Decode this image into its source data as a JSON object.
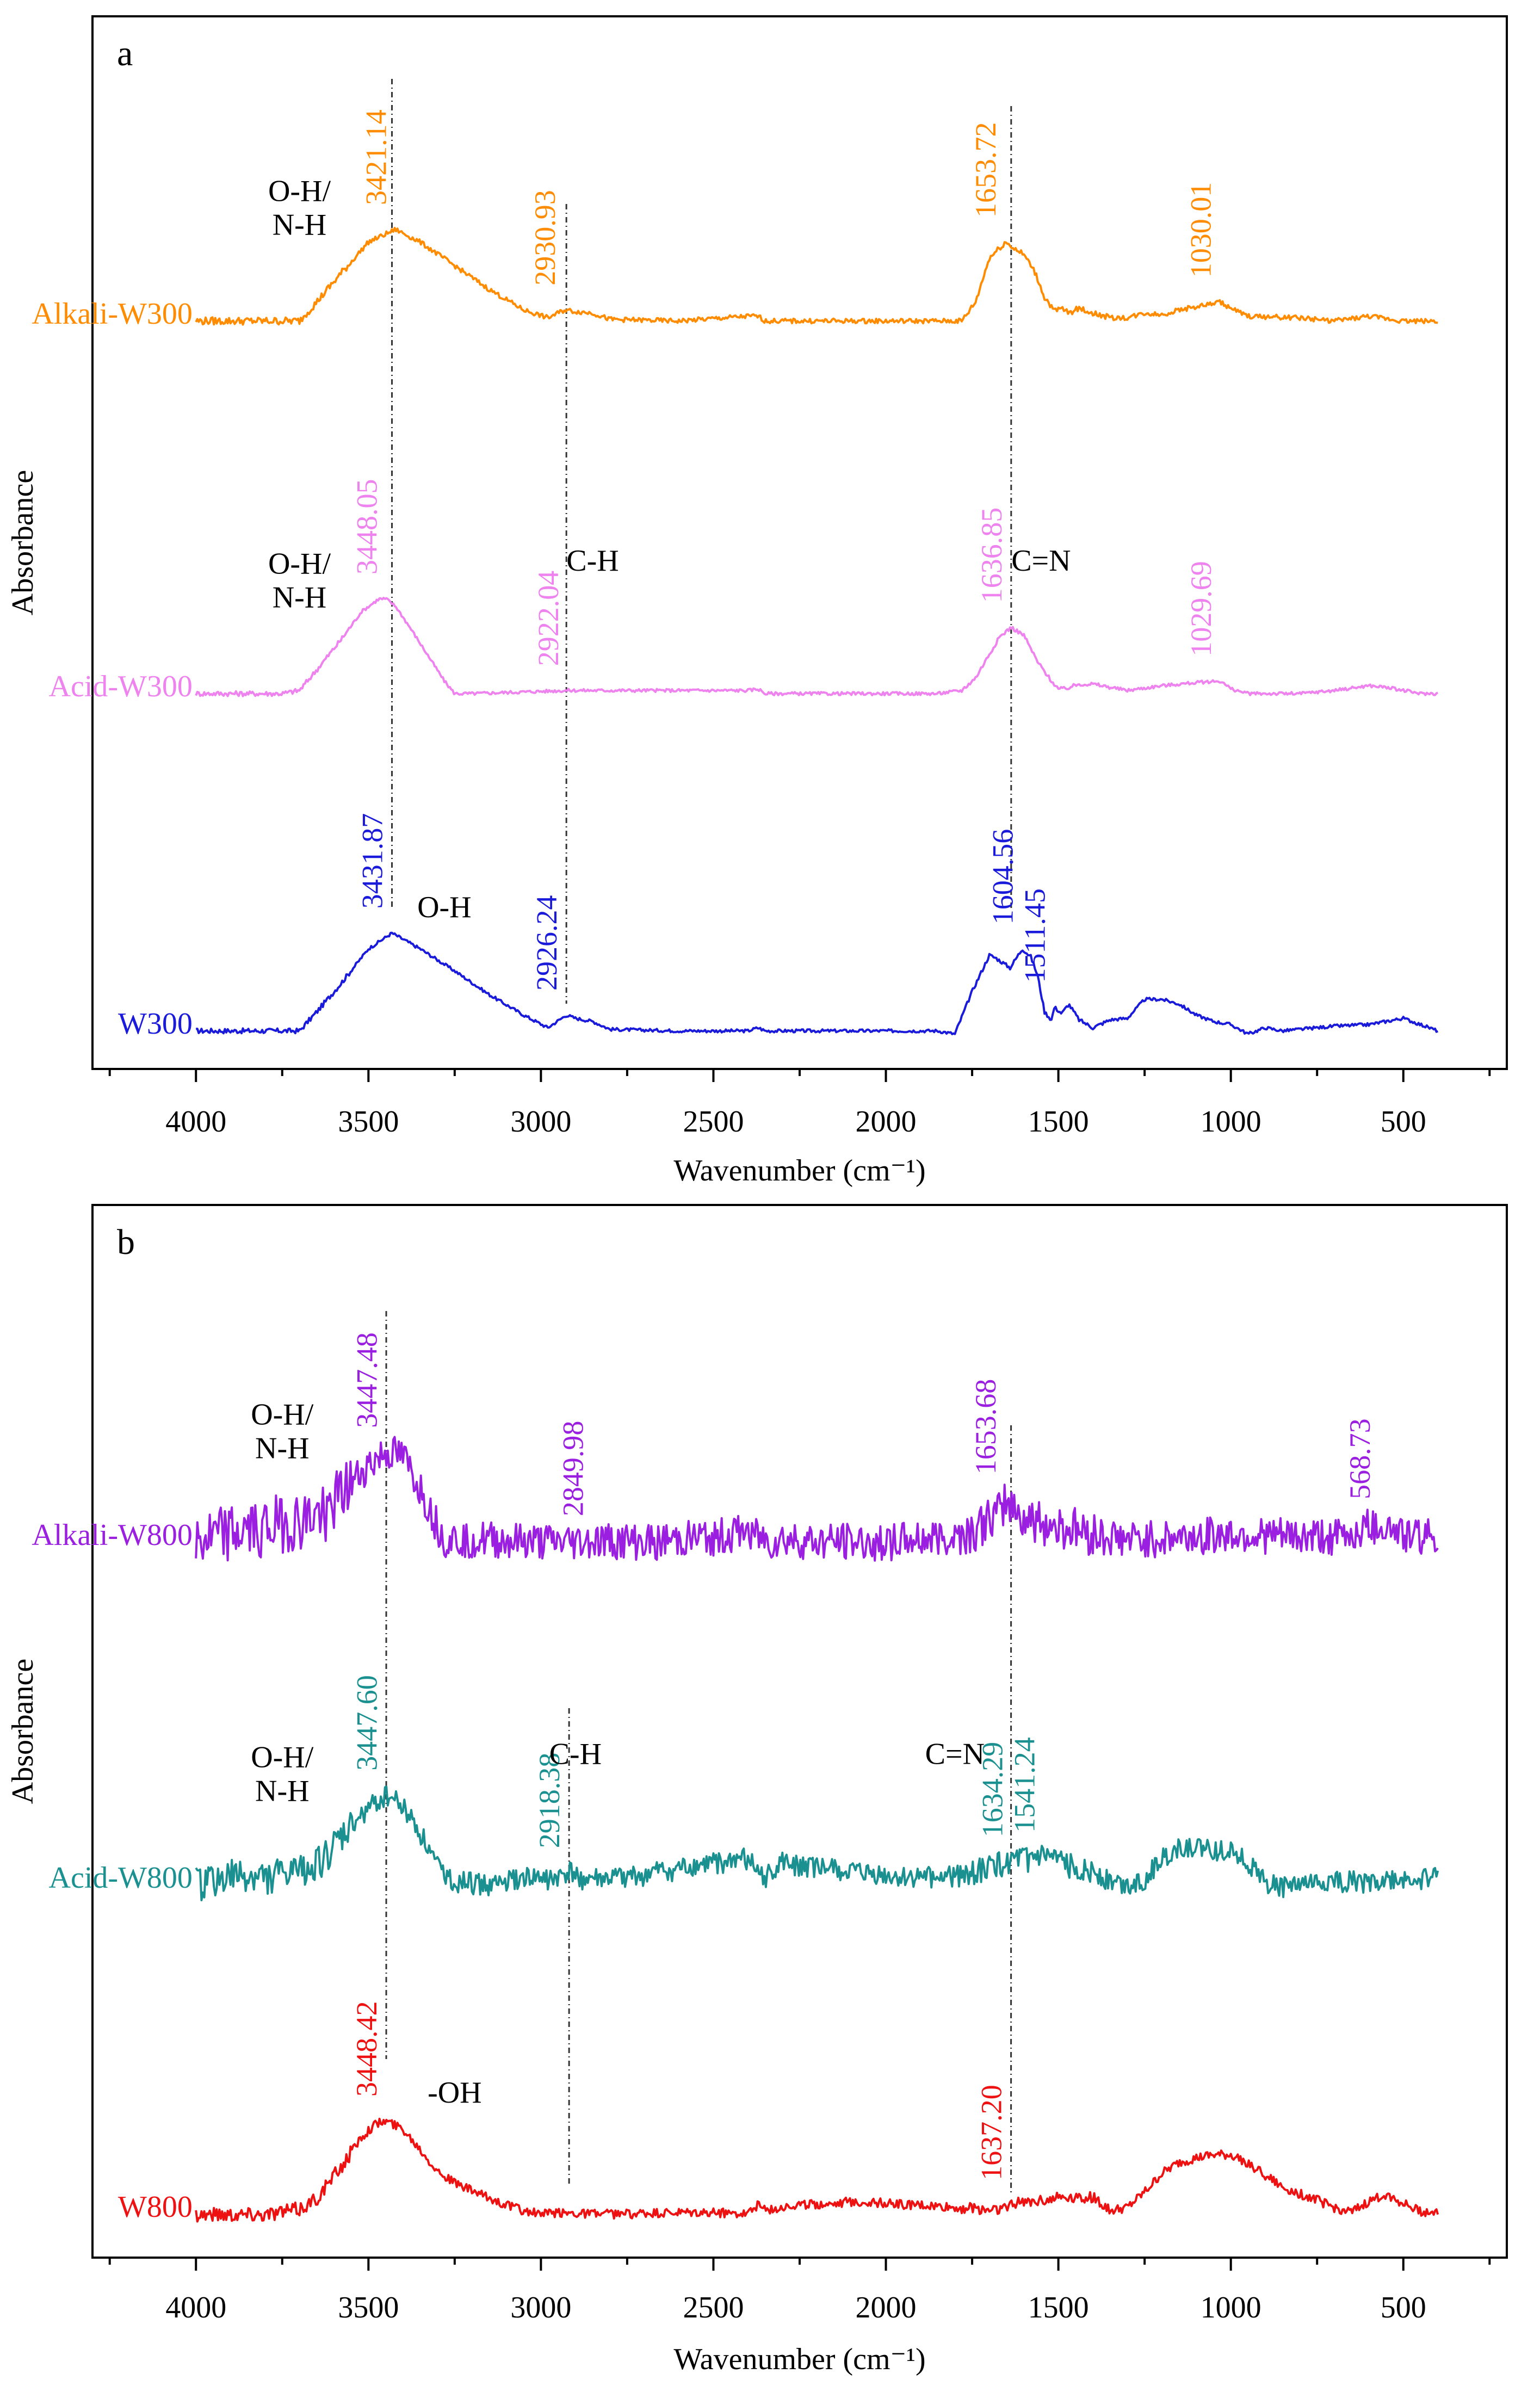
{
  "chart_data": [
    {
      "panel": "a",
      "type": "line",
      "xlabel": "Wavenumber (cm⁻¹)",
      "ylabel": "Absorbance",
      "xlim": [
        4300,
        200
      ],
      "xticks": [
        4000,
        3500,
        3000,
        2500,
        2000,
        1500,
        1000,
        500
      ],
      "reference_lines": [
        3431.87,
        2926.24,
        1636.85
      ],
      "series": [
        {
          "name": "W300",
          "color": "#1a1adb",
          "offset": 2.0,
          "noise": 0.01,
          "x": [
            4000,
            3700,
            3650,
            3580,
            3500,
            3431.87,
            3350,
            3250,
            3150,
            3050,
            2980,
            2926.24,
            2900,
            2850,
            2800,
            2600,
            2400,
            2370,
            2350,
            2200,
            2000,
            1850,
            1800,
            1750,
            1700,
            1680,
            1640,
            1604.56,
            1580,
            1560,
            1540,
            1520,
            1511.45,
            1490,
            1470,
            1440,
            1400,
            1350,
            1300,
            1250,
            1200,
            1150,
            1100,
            1050,
            1000,
            950,
            900,
            850,
            800,
            700,
            600,
            500,
            450,
            400
          ],
          "y": [
            0,
            0,
            0.12,
            0.3,
            0.52,
            0.62,
            0.52,
            0.38,
            0.23,
            0.1,
            0.02,
            0.1,
            0.08,
            0.06,
            0.01,
            0,
            0,
            0.02,
            0,
            0,
            0,
            0,
            -0.02,
            0.25,
            0.48,
            0.46,
            0.4,
            0.52,
            0.47,
            0.35,
            0.12,
            0.07,
            0.15,
            0.11,
            0.17,
            0.07,
            0.02,
            0.07,
            0.08,
            0.2,
            0.2,
            0.17,
            0.1,
            0.06,
            0.04,
            -0.02,
            0.02,
            0.0,
            0.01,
            0.03,
            0.04,
            0.08,
            0.04,
            0.0
          ]
        },
        {
          "name": "Acid-W300",
          "color": "#ee82ee",
          "offset": 1.0,
          "noise": 0.01,
          "x": [
            4000,
            3750,
            3700,
            3650,
            3580,
            3520,
            3470,
            3448.05,
            3420,
            3380,
            3330,
            3280,
            3250,
            3200,
            2922.04,
            2600,
            2400,
            2370,
            2350,
            2200,
            2000,
            1850,
            1780,
            1740,
            1700,
            1670,
            1636.85,
            1600,
            1560,
            1520,
            1500,
            1480,
            1440,
            1400,
            1350,
            1300,
            1200,
            1100,
            1029.69,
            1000,
            950,
            800,
            700,
            600,
            550,
            500,
            450,
            400
          ],
          "y": [
            0,
            0,
            0.02,
            0.15,
            0.34,
            0.52,
            0.6,
            0.6,
            0.55,
            0.42,
            0.25,
            0.08,
            0.0,
            0.0,
            0.02,
            0.02,
            0.02,
            0.03,
            0.0,
            0.0,
            0.0,
            0.0,
            0.02,
            0.1,
            0.25,
            0.36,
            0.42,
            0.37,
            0.2,
            0.08,
            0.03,
            0.03,
            0.06,
            0.06,
            0.04,
            0.02,
            0.05,
            0.07,
            0.08,
            0.03,
            0.0,
            0.0,
            0.02,
            0.05,
            0.04,
            0.02,
            0.0,
            0.0
          ]
        },
        {
          "name": "Alkali-W300",
          "color": "#ff8c00",
          "offset": 0.0,
          "noise": 0.015,
          "x": [
            4000,
            3700,
            3650,
            3580,
            3500,
            3421.14,
            3350,
            3250,
            3150,
            3050,
            2980,
            2930.93,
            2900,
            2850,
            2800,
            2600,
            2400,
            2370,
            2350,
            2200,
            2000,
            1850,
            1780,
            1740,
            1700,
            1653.72,
            1620,
            1600,
            1570,
            1540,
            1510,
            1490,
            1470,
            1440,
            1400,
            1350,
            1300,
            1250,
            1200,
            1150,
            1100,
            1030.01,
            1000,
            950,
            800,
            700,
            600,
            500,
            450,
            400
          ],
          "y": [
            0,
            0,
            0.12,
            0.3,
            0.5,
            0.58,
            0.5,
            0.35,
            0.2,
            0.07,
            0.02,
            0.07,
            0.06,
            0.05,
            0.01,
            0.0,
            0.03,
            0.03,
            0.0,
            0.0,
            0.0,
            0.0,
            0.0,
            0.12,
            0.4,
            0.5,
            0.45,
            0.42,
            0.32,
            0.15,
            0.06,
            0.08,
            0.05,
            0.08,
            0.05,
            0.02,
            0.02,
            0.05,
            0.04,
            0.07,
            0.09,
            0.12,
            0.08,
            0.03,
            0.02,
            0.0,
            0.03,
            0.0,
            0.0,
            0.0
          ]
        }
      ],
      "peak_labels": [
        {
          "series": "W300",
          "x": 3431.87,
          "text": "3431.87",
          "color": "#1a1adb"
        },
        {
          "series": "W300",
          "x": 2926.24,
          "text": "2926.24",
          "color": "#1a1adb"
        },
        {
          "series": "W300",
          "x": 1604.56,
          "text": "1604.56",
          "color": "#1a1adb"
        },
        {
          "series": "W300",
          "x": 1511.45,
          "text": "1511.45",
          "color": "#1a1adb"
        },
        {
          "series": "Acid-W300",
          "x": 3448.05,
          "text": "3448.05",
          "color": "#ee82ee"
        },
        {
          "series": "Acid-W300",
          "x": 2922.04,
          "text": "2922.04",
          "color": "#ee82ee"
        },
        {
          "series": "Acid-W300",
          "x": 1636.85,
          "text": "1636.85",
          "color": "#ee82ee"
        },
        {
          "series": "Acid-W300",
          "x": 1029.69,
          "text": "1029.69",
          "color": "#ee82ee"
        },
        {
          "series": "Alkali-W300",
          "x": 3421.14,
          "text": "3421.14",
          "color": "#ff8c00"
        },
        {
          "series": "Alkali-W300",
          "x": 2930.93,
          "text": "2930.93",
          "color": "#ff8c00"
        },
        {
          "series": "Alkali-W300",
          "x": 1653.72,
          "text": "1653.72",
          "color": "#ff8c00"
        },
        {
          "series": "Alkali-W300",
          "x": 1030.01,
          "text": "1030.01",
          "color": "#ff8c00"
        }
      ],
      "bond_labels": [
        {
          "text": "O-H",
          "x": 3280,
          "series": "W300"
        },
        {
          "text": "O-H/",
          "x": 3700,
          "series": "Acid-W300"
        },
        {
          "text": "N-H",
          "x": 3700,
          "series": "Acid-W300"
        },
        {
          "text": "C-H",
          "x": 2850,
          "series": "Acid-W300"
        },
        {
          "text": "C=N",
          "x": 1550,
          "series": "Acid-W300"
        },
        {
          "text": "O-H/",
          "x": 3700,
          "series": "Alkali-W300"
        },
        {
          "text": "N-H",
          "x": 3700,
          "series": "Alkali-W300"
        }
      ]
    },
    {
      "panel": "b",
      "type": "line",
      "xlabel": "Wavenumber (cm⁻¹)",
      "ylabel": "Absorbance",
      "xlim": [
        4300,
        200
      ],
      "xticks": [
        4000,
        3500,
        3000,
        2500,
        2000,
        1500,
        1000,
        500
      ],
      "reference_lines": [
        3448.42,
        2918.38,
        1637.2
      ],
      "series": [
        {
          "name": "W800",
          "color": "#ee1111",
          "offset": 2.0,
          "noise": 0.03,
          "x": [
            4000,
            3800,
            3700,
            3650,
            3580,
            3520,
            3480,
            3448.42,
            3400,
            3350,
            3300,
            3250,
            3150,
            3050,
            3000,
            2918.38,
            2800,
            2400,
            2370,
            2340,
            2300,
            2100,
            2000,
            1800,
            1700,
            1650,
            1637.2,
            1600,
            1500,
            1400,
            1350,
            1300,
            1250,
            1200,
            1150,
            1100,
            1050,
            1000,
            950,
            900,
            850,
            800,
            750,
            700,
            650,
            600,
            550,
            500,
            450,
            400
          ],
          "y": [
            0,
            0,
            0.03,
            0.1,
            0.3,
            0.5,
            0.58,
            0.6,
            0.55,
            0.42,
            0.28,
            0.2,
            0.1,
            0.02,
            0.0,
            0.01,
            0.0,
            0.01,
            0.06,
            0.02,
            0.05,
            0.08,
            0.07,
            0.04,
            0.03,
            0.04,
            0.06,
            0.08,
            0.11,
            0.11,
            0.02,
            0.04,
            0.14,
            0.26,
            0.33,
            0.36,
            0.38,
            0.38,
            0.33,
            0.25,
            0.17,
            0.13,
            0.09,
            0.04,
            0.01,
            0.08,
            0.13,
            0.07,
            0.02,
            0.0
          ]
        },
        {
          "name": "Acid-W800",
          "color": "#1a9090",
          "offset": 1.0,
          "noise": 0.07,
          "x": [
            4000,
            3900,
            3800,
            3700,
            3620,
            3560,
            3500,
            3447.6,
            3420,
            3380,
            3340,
            3300,
            3250,
            3150,
            3050,
            2950,
            2918.38,
            2880,
            2800,
            2600,
            2400,
            2370,
            2350,
            2300,
            2100,
            1950,
            1800,
            1700,
            1650,
            1634.29,
            1600,
            1541.24,
            1500,
            1450,
            1400,
            1350,
            1300,
            1250,
            1200,
            1150,
            1100,
            1050,
            1000,
            950,
            900,
            850,
            800,
            700,
            600,
            500,
            450,
            400
          ],
          "y": [
            0,
            0.05,
            0.05,
            0.08,
            0.18,
            0.35,
            0.5,
            0.58,
            0.55,
            0.45,
            0.3,
            0.12,
            0.02,
            0.0,
            0.04,
            0.04,
            0.08,
            0.04,
            0.03,
            0.1,
            0.17,
            0.07,
            0.05,
            0.14,
            0.08,
            0.04,
            0.06,
            0.11,
            0.14,
            0.15,
            0.16,
            0.18,
            0.14,
            0.12,
            0.1,
            0.02,
            0.0,
            0.04,
            0.16,
            0.24,
            0.24,
            0.22,
            0.24,
            0.15,
            0.02,
            -0.02,
            0.0,
            0.02,
            0.02,
            0.03,
            0.04,
            0.05
          ]
        },
        {
          "name": "Alkali-W800",
          "color": "#9b1fe0",
          "offset": 0.0,
          "noise": 0.12,
          "x": [
            4000,
            3900,
            3800,
            3700,
            3620,
            3560,
            3500,
            3447.48,
            3400,
            3350,
            3300,
            3280,
            3200,
            3000,
            2918.38,
            2849.98,
            2700,
            2450,
            2400,
            2370,
            2340,
            2300,
            2200,
            2000,
            1850,
            1750,
            1700,
            1670,
            1653.68,
            1630,
            1600,
            1550,
            1500,
            1450,
            1400,
            1350,
            1300,
            1200,
            1100,
            1000,
            900,
            800,
            700,
            650,
            600,
            568.73,
            540,
            500,
            450,
            400
          ],
          "y": [
            0,
            0.05,
            0.1,
            0.13,
            0.2,
            0.35,
            0.5,
            0.58,
            0.55,
            0.35,
            0.1,
            0.02,
            0.02,
            0.0,
            0.0,
            0.01,
            0.0,
            0.04,
            0.09,
            0.04,
            0.0,
            0.02,
            0.0,
            0.0,
            0.03,
            0.07,
            0.14,
            0.2,
            0.28,
            0.22,
            0.16,
            0.12,
            0.1,
            0.08,
            0.05,
            0.03,
            0.01,
            0.02,
            0.04,
            0.05,
            0.04,
            0.03,
            0.04,
            0.05,
            0.1,
            0.12,
            0.1,
            0.06,
            0.04,
            0.05
          ]
        }
      ],
      "peak_labels": [
        {
          "series": "W800",
          "x": 3448.42,
          "text": "3448.42",
          "color": "#ee1111"
        },
        {
          "series": "W800",
          "x": 1637.2,
          "text": "1637.20",
          "color": "#ee1111"
        },
        {
          "series": "Acid-W800",
          "x": 3447.6,
          "text": "3447.60",
          "color": "#1a9090"
        },
        {
          "series": "Acid-W800",
          "x": 2918.38,
          "text": "2918.38",
          "color": "#1a9090"
        },
        {
          "series": "Acid-W800",
          "x": 1634.29,
          "text": "1634.29",
          "color": "#1a9090"
        },
        {
          "series": "Acid-W800",
          "x": 1541.24,
          "text": "1541.24",
          "color": "#1a9090"
        },
        {
          "series": "Alkali-W800",
          "x": 3447.48,
          "text": "3447.48",
          "color": "#9b1fe0"
        },
        {
          "series": "Alkali-W800",
          "x": 2849.98,
          "text": "2849.98",
          "color": "#9b1fe0"
        },
        {
          "series": "Alkali-W800",
          "x": 1653.68,
          "text": "1653.68",
          "color": "#9b1fe0"
        },
        {
          "series": "Alkali-W800",
          "x": 568.73,
          "text": "568.73",
          "color": "#9b1fe0"
        }
      ],
      "bond_labels": [
        {
          "text": "-OH",
          "x": 3250,
          "series": "W800"
        },
        {
          "text": "C-H",
          "x": 2900,
          "series": "Acid-W800"
        },
        {
          "text": "C=N",
          "x": 1800,
          "series": "Acid-W800"
        },
        {
          "text": "O-H/",
          "x": 3750,
          "series": "Acid-W800"
        },
        {
          "text": "N-H",
          "x": 3750,
          "series": "Acid-W800"
        },
        {
          "text": "O-H/",
          "x": 3750,
          "series": "Alkali-W800"
        },
        {
          "text": "N-H",
          "x": 3750,
          "series": "Alkali-W800"
        }
      ]
    }
  ]
}
